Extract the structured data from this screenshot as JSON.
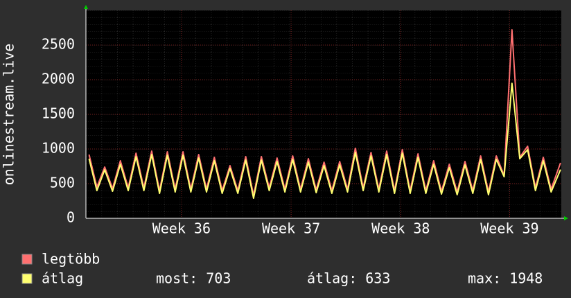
{
  "chart_data": {
    "type": "line",
    "y_label": "onlinestream.live",
    "x": [
      0.2,
      0.7,
      1.2,
      1.7,
      2.2,
      2.7,
      3.2,
      3.7,
      4.2,
      4.7,
      5.2,
      5.7,
      6.2,
      6.7,
      7.2,
      7.7,
      8.2,
      8.7,
      9.2,
      9.7,
      10.2,
      10.7,
      11.2,
      11.7,
      12.2,
      12.7,
      13.2,
      13.7,
      14.2,
      14.7,
      15.2,
      15.7,
      16.2,
      16.7,
      17.2,
      17.7,
      18.2,
      18.7,
      19.2,
      19.7,
      20.2,
      20.7,
      21.2,
      21.7,
      22.2,
      22.7,
      23.2,
      23.7,
      24.2,
      24.7,
      25.2,
      25.7,
      26.2,
      26.7,
      27.2,
      27.7,
      28.2,
      28.7,
      29.2,
      29.7,
      30.3
    ],
    "series": [
      {
        "name": "legtöbb",
        "color": "#ff7070",
        "values": [
          920,
          450,
          740,
          430,
          830,
          440,
          940,
          440,
          970,
          400,
          960,
          420,
          960,
          420,
          920,
          420,
          880,
          400,
          760,
          400,
          890,
          330,
          890,
          440,
          870,
          420,
          900,
          420,
          860,
          410,
          810,
          400,
          820,
          420,
          1010,
          440,
          950,
          420,
          970,
          400,
          990,
          400,
          930,
          400,
          830,
          390,
          780,
          380,
          820,
          400,
          900,
          380,
          900,
          620,
          2720,
          880,
          1040,
          440,
          880,
          420,
          800
        ]
      },
      {
        "name": "átlag",
        "color": "#ffff70",
        "values": [
          860,
          400,
          700,
          390,
          780,
          400,
          890,
          400,
          920,
          360,
          910,
          380,
          910,
          380,
          870,
          380,
          830,
          360,
          720,
          360,
          840,
          290,
          840,
          400,
          820,
          380,
          850,
          380,
          810,
          370,
          760,
          360,
          770,
          380,
          950,
          400,
          900,
          380,
          920,
          360,
          940,
          360,
          880,
          360,
          780,
          350,
          730,
          340,
          770,
          360,
          850,
          340,
          850,
          600,
          1948,
          860,
          990,
          400,
          830,
          380,
          703
        ]
      }
    ],
    "xlim": [
      0,
      30.35
    ],
    "xticks": [
      {
        "value": 6.1,
        "label": "Week 36"
      },
      {
        "value": 13.1,
        "label": "Week 37"
      },
      {
        "value": 20.1,
        "label": "Week 38"
      },
      {
        "value": 27.05,
        "label": "Week 39"
      }
    ],
    "ylim": [
      0,
      3000
    ],
    "yticks": [
      0,
      500,
      1000,
      1500,
      2000,
      2500
    ],
    "grid": true,
    "stats": [
      {
        "label": "most:",
        "value": 703
      },
      {
        "label": "átlag:",
        "value": 633
      },
      {
        "label": "max:",
        "value": 1948
      }
    ]
  }
}
